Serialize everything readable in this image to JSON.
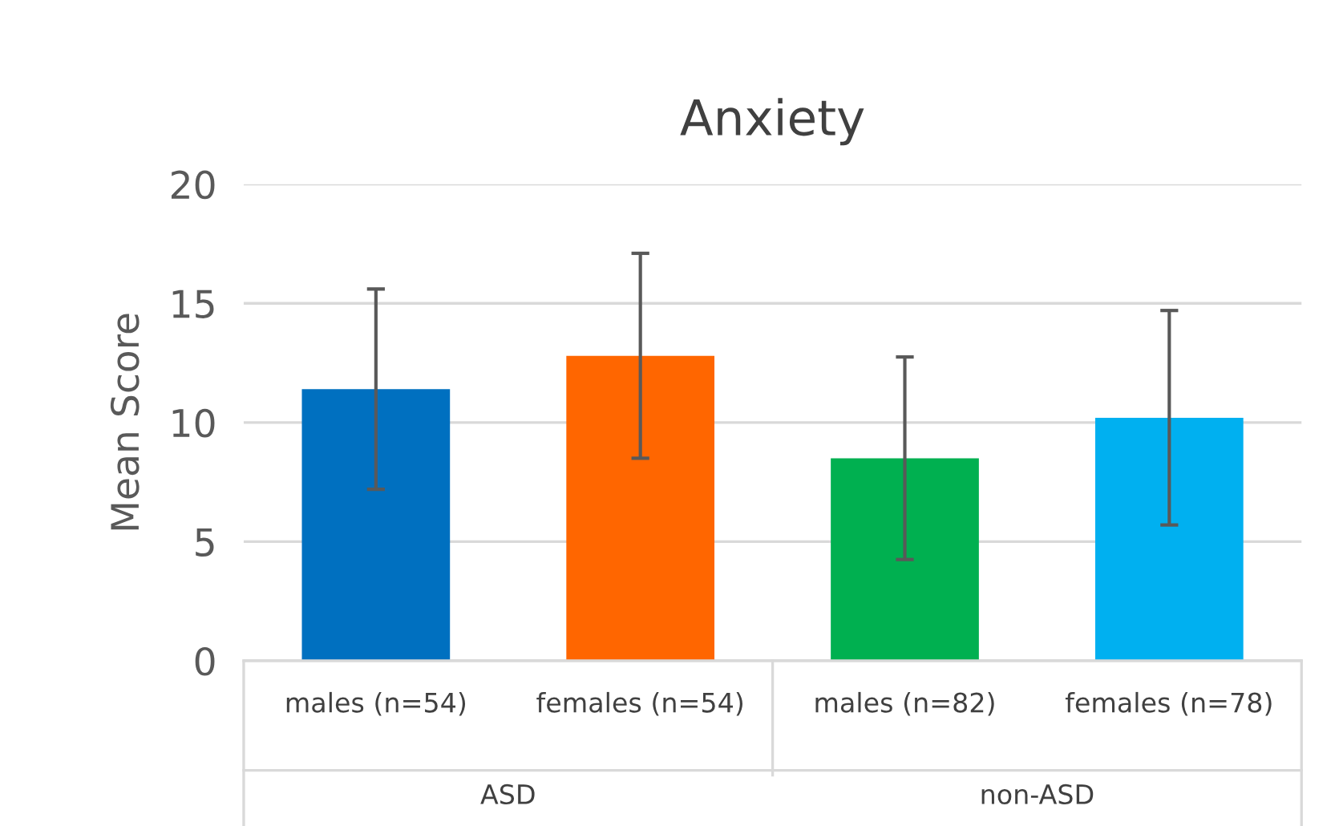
{
  "chart_data": {
    "type": "bar",
    "title": "Anxiety",
    "ylabel": "Mean Score",
    "categories": [
      "males (n=54)",
      "females (n=54)",
      "males (n=82)",
      "females (n=78)"
    ],
    "values": [
      11.4,
      12.8,
      8.5,
      10.2
    ],
    "colors": [
      "#0070c0",
      "#ff6600",
      "#00b050",
      "#00b0f0"
    ],
    "errors": [
      4.2,
      4.3,
      4.25,
      4.5
    ],
    "ylim": [
      0,
      20
    ],
    "yticks": [
      0,
      5,
      10,
      15,
      20
    ],
    "grid": "y",
    "annotations": [
      "ASD",
      "non-ASD"
    ]
  }
}
